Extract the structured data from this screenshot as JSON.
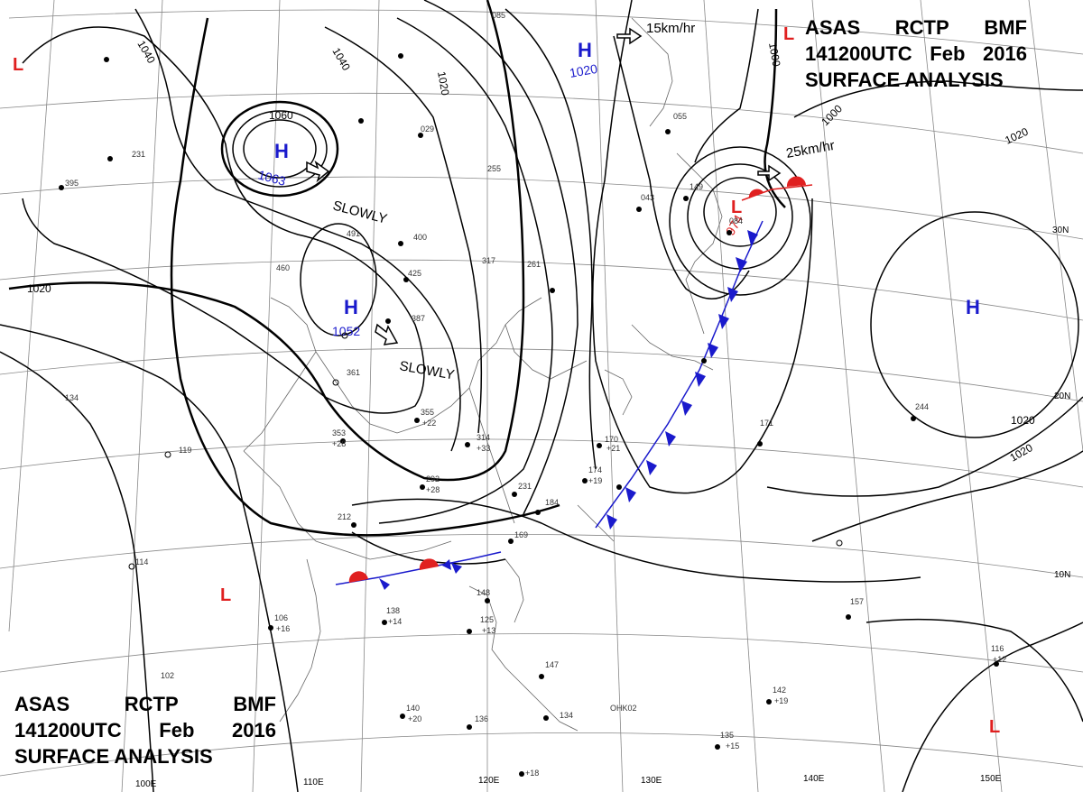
{
  "title": {
    "line1": [
      "ASAS",
      "RCTP",
      "BMF"
    ],
    "line2": [
      "141200UTC",
      "Feb",
      "2016"
    ],
    "line3": "SURFACE ANALYSIS"
  },
  "isobar_labels": [
    "1040",
    "1040",
    "1020",
    "1020",
    "1060",
    "1020",
    "1000",
    "1000",
    "1020",
    "1020"
  ],
  "pressure_centers": [
    {
      "type": "H",
      "value": "1063",
      "color": "#1a1acc"
    },
    {
      "type": "H",
      "value": "1052",
      "color": "#1a1acc"
    },
    {
      "type": "H",
      "value": "1020",
      "color": "#1a1acc"
    },
    {
      "type": "H",
      "value": "",
      "color": "#1a1acc"
    },
    {
      "type": "L",
      "value": "974",
      "color": "#e02020"
    },
    {
      "type": "L",
      "value": "",
      "color": "#e02020"
    },
    {
      "type": "L",
      "value": "",
      "color": "#e02020"
    },
    {
      "type": "L",
      "value": "",
      "color": "#e02020"
    },
    {
      "type": "L",
      "value": "",
      "color": "#e02020"
    }
  ],
  "motion_labels": [
    "SLOWLY",
    "SLOWLY",
    "15km/hr",
    "25km/hr"
  ],
  "latitude_labels": [
    "30N",
    "20N",
    "10N"
  ],
  "longitude_labels": [
    "100E",
    "110E",
    "120E",
    "130E",
    "140E",
    "150E"
  ],
  "station_labels": [
    "085",
    "292",
    "355",
    "314",
    "353",
    "212",
    "231",
    "184",
    "174",
    "170",
    "169",
    "148",
    "125",
    "147",
    "134",
    "136",
    "140",
    "102",
    "106",
    "138",
    "114",
    "119",
    "134",
    "157",
    "142",
    "135",
    "116",
    "171",
    "244",
    "043",
    "055",
    "084",
    "149",
    "400",
    "425",
    "387",
    "361",
    "491",
    "460",
    "255",
    "317",
    "261",
    "395",
    "231",
    "029",
    "OHK02"
  ],
  "station_offsets": [
    "+28",
    "+22",
    "+33",
    "+28",
    "+19",
    "+21",
    "+16",
    "+14",
    "+20",
    "+18",
    "+13",
    "+12",
    "+15",
    "+19"
  ],
  "colors": {
    "warm_front": "#e02020",
    "cold_front": "#1a1acc",
    "isobar": "#000000",
    "geo": "#777777"
  }
}
